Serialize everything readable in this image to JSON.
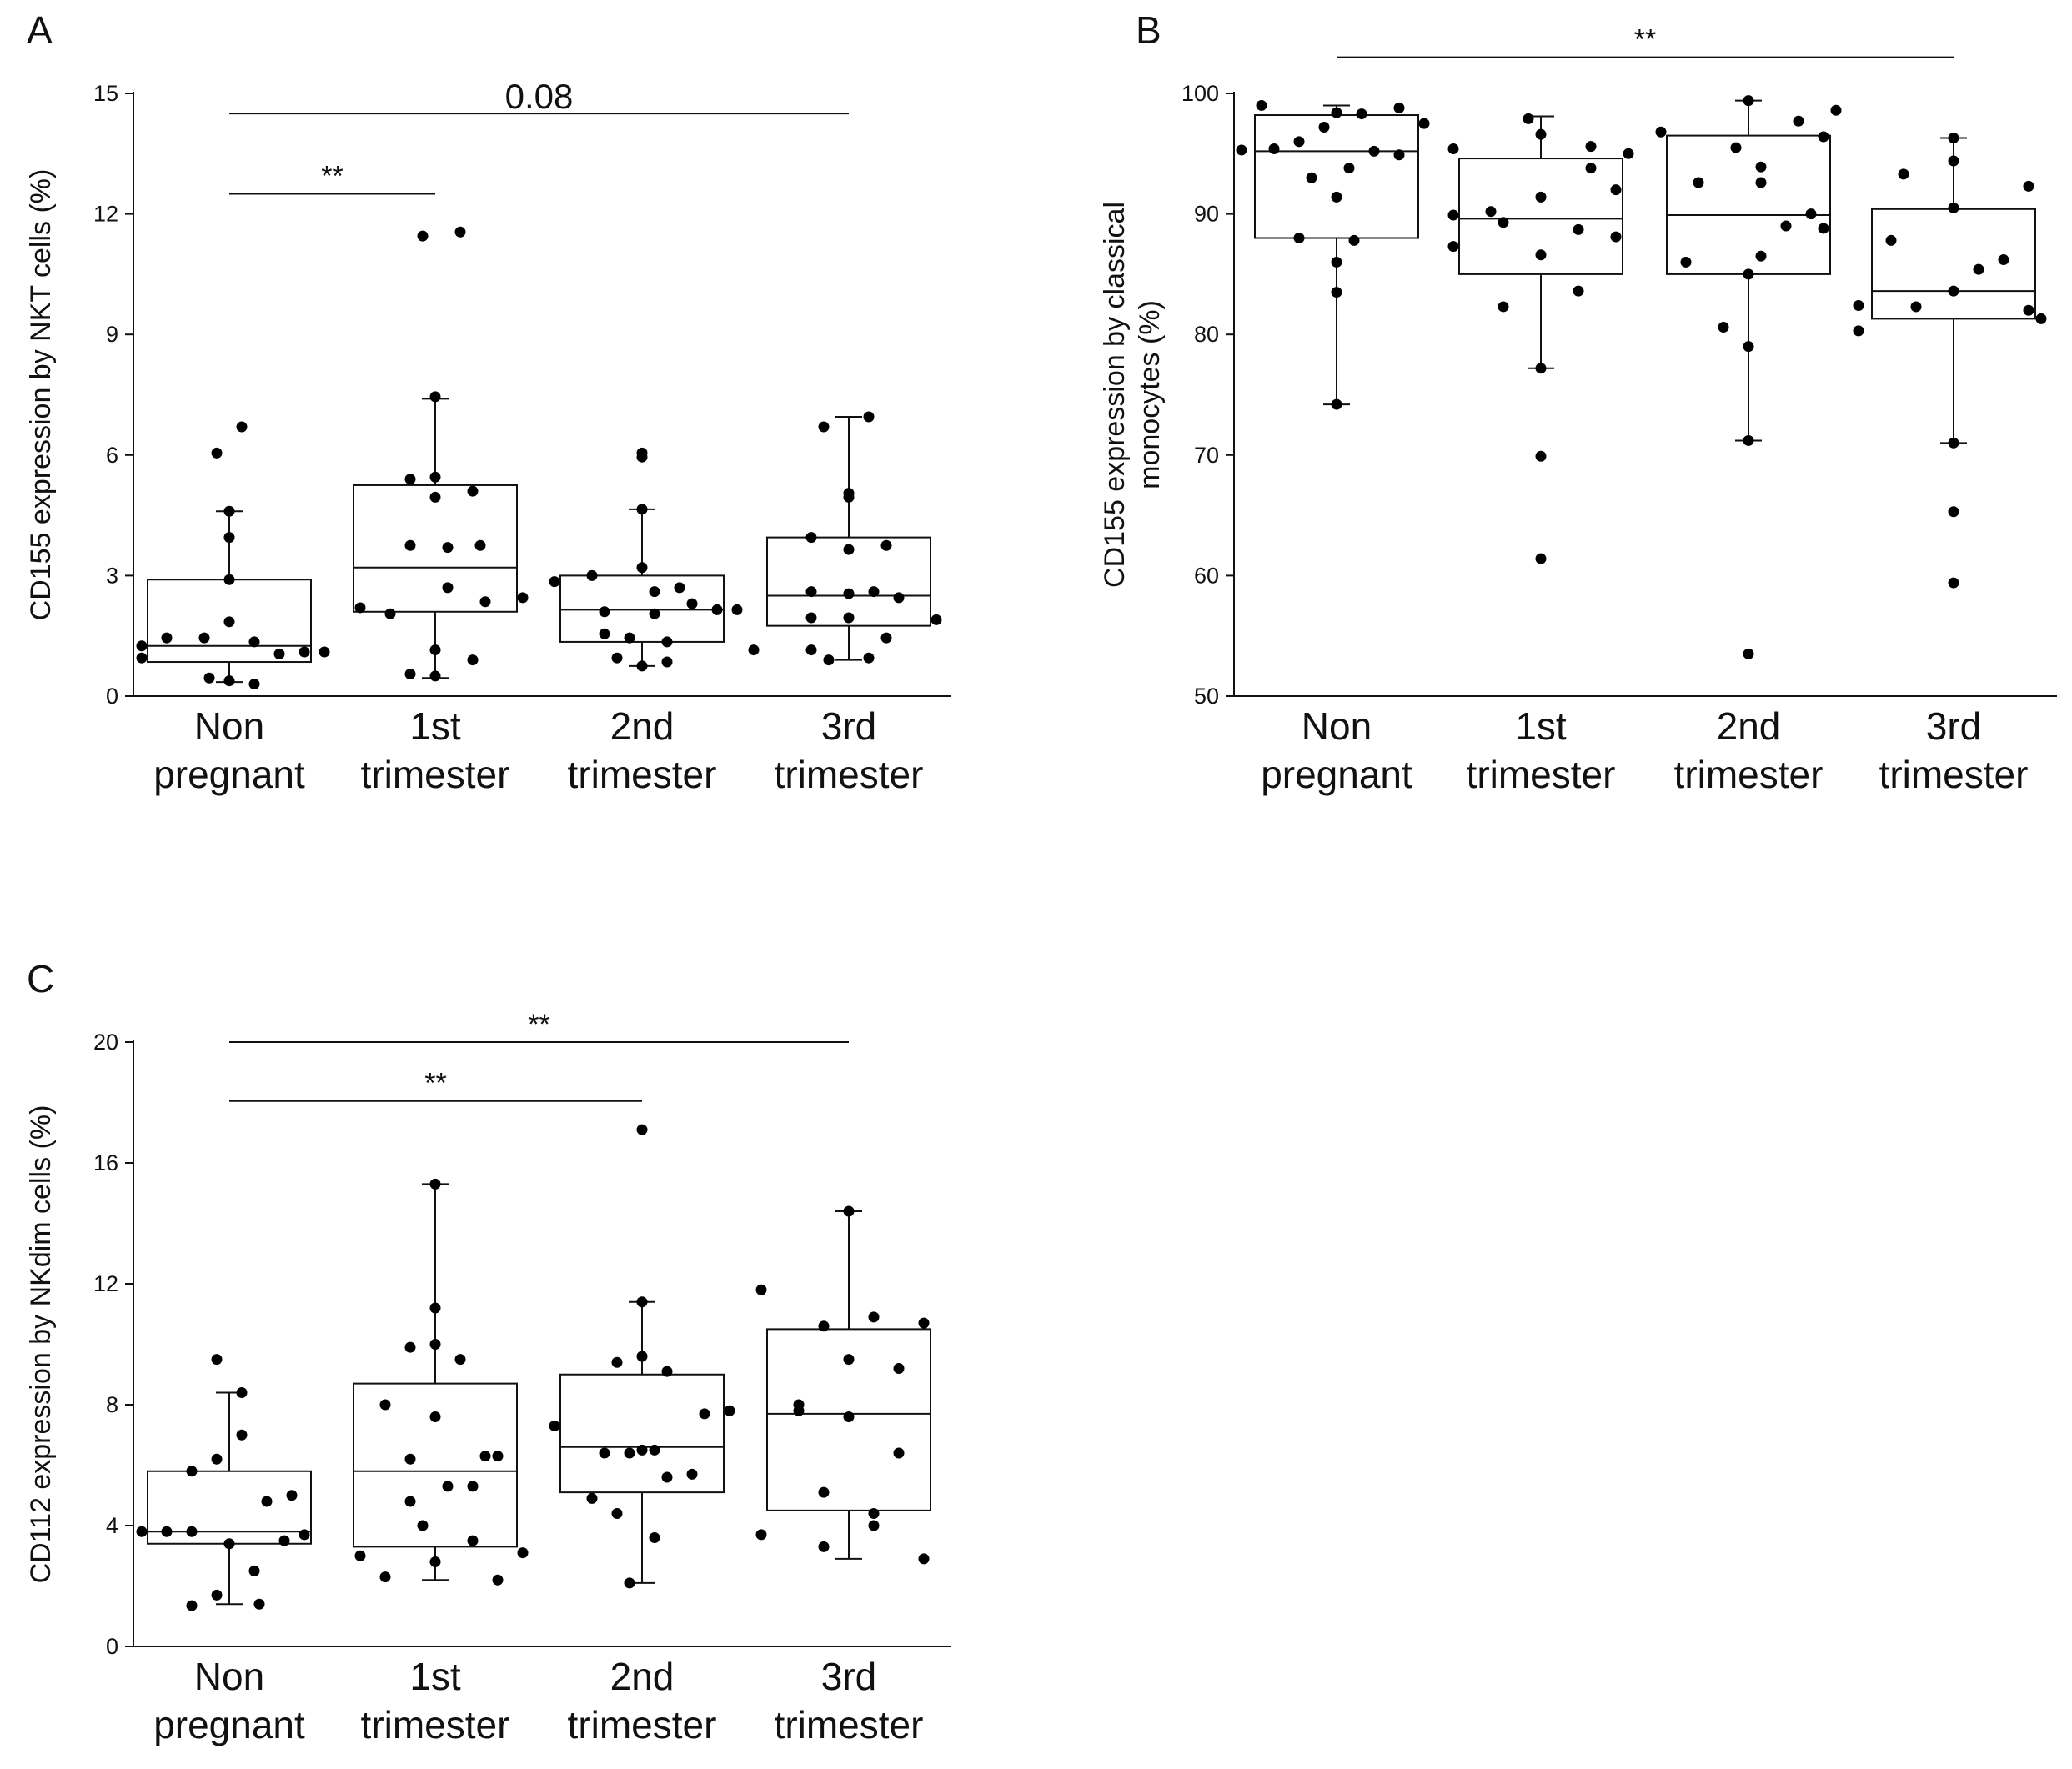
{
  "chart_data": [
    {
      "id": "A",
      "panel_letter": "A",
      "type": "box",
      "ylabel": "CD155 expression by NKT cells (%)",
      "ylim": [
        0,
        15
      ],
      "yticks": [
        0,
        3,
        6,
        9,
        12,
        15
      ],
      "categories": [
        {
          "line1": "Non",
          "line2": "pregnant"
        },
        {
          "line1": "1st",
          "line2": "trimester"
        },
        {
          "line1": "2nd",
          "line2": "trimester"
        },
        {
          "line1": "3rd",
          "line2": "trimester"
        }
      ],
      "boxes": [
        {
          "q1": 0.85,
          "median": 1.25,
          "q3": 2.9,
          "whisker_low": 0.35,
          "whisker_high": 4.6
        },
        {
          "q1": 2.1,
          "median": 3.2,
          "q3": 5.25,
          "whisker_low": 0.45,
          "whisker_high": 7.4
        },
        {
          "q1": 1.35,
          "median": 2.15,
          "q3": 3.0,
          "whisker_low": 0.75,
          "whisker_high": 4.65
        },
        {
          "q1": 1.75,
          "median": 2.5,
          "q3": 3.95,
          "whisker_low": 0.9,
          "whisker_high": 6.95
        }
      ],
      "points": [
        [
          [
            -0.35,
            1.25
          ],
          [
            -0.25,
            1.45
          ],
          [
            -0.1,
            1.45
          ],
          [
            0.1,
            1.35
          ],
          [
            -0.35,
            0.95
          ],
          [
            0.2,
            1.05
          ],
          [
            0.3,
            1.1
          ],
          [
            0.38,
            1.1
          ],
          [
            0.0,
            1.85
          ],
          [
            0.0,
            2.9
          ],
          [
            0.0,
            3.95
          ],
          [
            0.0,
            4.6
          ],
          [
            -0.05,
            6.05
          ],
          [
            0.05,
            6.7
          ],
          [
            -0.08,
            0.45
          ],
          [
            0.1,
            0.3
          ],
          [
            0.0,
            0.38
          ]
        ],
        [
          [
            -0.3,
            2.2
          ],
          [
            -0.18,
            2.05
          ],
          [
            0.05,
            2.7
          ],
          [
            0.2,
            2.35
          ],
          [
            0.35,
            2.45
          ],
          [
            -0.1,
            3.75
          ],
          [
            0.05,
            3.7
          ],
          [
            0.18,
            3.75
          ],
          [
            0.0,
            4.95
          ],
          [
            -0.1,
            5.4
          ],
          [
            0.0,
            5.45
          ],
          [
            0.15,
            5.1
          ],
          [
            0.0,
            7.45
          ],
          [
            0.1,
            11.55
          ],
          [
            -0.05,
            11.45
          ],
          [
            0.0,
            1.15
          ],
          [
            -0.1,
            0.55
          ],
          [
            0.15,
            0.9
          ],
          [
            0.0,
            0.5
          ]
        ],
        [
          [
            -0.35,
            2.85
          ],
          [
            -0.2,
            3.0
          ],
          [
            0.0,
            3.2
          ],
          [
            -0.15,
            2.1
          ],
          [
            0.05,
            2.05
          ],
          [
            0.2,
            2.3
          ],
          [
            0.3,
            2.15
          ],
          [
            0.38,
            2.15
          ],
          [
            0.05,
            2.6
          ],
          [
            0.15,
            2.7
          ],
          [
            -0.15,
            1.55
          ],
          [
            -0.05,
            1.45
          ],
          [
            0.1,
            1.35
          ],
          [
            0.0,
            4.65
          ],
          [
            0.0,
            5.95
          ],
          [
            0.0,
            6.05
          ],
          [
            0.0,
            0.75
          ],
          [
            0.1,
            0.85
          ],
          [
            -0.1,
            0.95
          ]
        ],
        [
          [
            -0.38,
            1.15
          ],
          [
            -0.15,
            1.15
          ],
          [
            0.15,
            1.45
          ],
          [
            0.35,
            1.9
          ],
          [
            -0.15,
            1.95
          ],
          [
            0.0,
            1.95
          ],
          [
            0.2,
            2.45
          ],
          [
            -0.15,
            2.6
          ],
          [
            0.0,
            2.55
          ],
          [
            0.1,
            2.6
          ],
          [
            -0.15,
            3.95
          ],
          [
            0.0,
            3.65
          ],
          [
            0.15,
            3.75
          ],
          [
            0.0,
            4.95
          ],
          [
            0.0,
            5.05
          ],
          [
            -0.1,
            6.7
          ],
          [
            0.08,
            6.95
          ],
          [
            -0.08,
            0.9
          ],
          [
            0.08,
            0.95
          ]
        ]
      ],
      "significance": [
        {
          "from": 0,
          "to": 1,
          "label": "**",
          "level": 12.5
        },
        {
          "from": 0,
          "to": 3,
          "label": "0.08",
          "level": 14.5
        }
      ]
    },
    {
      "id": "B",
      "panel_letter": "B",
      "type": "box",
      "ylabel": "CD155 expression by classical",
      "ylabel2": "monocytes (%)",
      "ylim": [
        50,
        100
      ],
      "yticks": [
        50,
        60,
        70,
        80,
        90,
        100
      ],
      "categories": [
        {
          "line1": "Non",
          "line2": "pregnant"
        },
        {
          "line1": "1st",
          "line2": "trimester"
        },
        {
          "line1": "2nd",
          "line2": "trimester"
        },
        {
          "line1": "3rd",
          "line2": "trimester"
        }
      ],
      "boxes": [
        {
          "q1": 88.0,
          "median": 95.2,
          "q3": 98.2,
          "whisker_low": 74.2,
          "whisker_high": 99.0
        },
        {
          "q1": 85.0,
          "median": 89.6,
          "q3": 94.6,
          "whisker_low": 77.2,
          "whisker_high": 98.1
        },
        {
          "q1": 85.0,
          "median": 89.9,
          "q3": 96.5,
          "whisker_low": 71.2,
          "whisker_high": 99.4
        },
        {
          "q1": 81.3,
          "median": 83.6,
          "q3": 90.4,
          "whisker_low": 71.0,
          "whisker_high": 96.3
        }
      ],
      "points": [
        [
          [
            -0.3,
            99.0
          ],
          [
            -0.15,
            96.0
          ],
          [
            -0.05,
            97.2
          ],
          [
            0.1,
            98.3
          ],
          [
            0.25,
            98.8
          ],
          [
            0.0,
            98.4
          ],
          [
            -0.38,
            95.3
          ],
          [
            -0.25,
            95.4
          ],
          [
            0.15,
            95.2
          ],
          [
            0.25,
            94.9
          ],
          [
            0.35,
            97.5
          ],
          [
            -0.1,
            93.0
          ],
          [
            0.0,
            91.4
          ],
          [
            0.05,
            93.8
          ],
          [
            -0.15,
            88.0
          ],
          [
            0.07,
            87.8
          ],
          [
            0.0,
            86.0
          ],
          [
            0.0,
            83.5
          ],
          [
            0.0,
            74.2
          ]
        ],
        [
          [
            -0.35,
            95.4
          ],
          [
            -0.05,
            97.9
          ],
          [
            0.0,
            96.6
          ],
          [
            0.2,
            95.6
          ],
          [
            0.35,
            95.0
          ],
          [
            0.3,
            92.0
          ],
          [
            0.2,
            93.8
          ],
          [
            -0.35,
            89.9
          ],
          [
            -0.2,
            90.2
          ],
          [
            0.0,
            91.4
          ],
          [
            0.15,
            88.7
          ],
          [
            0.3,
            88.1
          ],
          [
            -0.35,
            87.3
          ],
          [
            -0.15,
            89.3
          ],
          [
            -0.15,
            82.3
          ],
          [
            0.0,
            86.6
          ],
          [
            0.15,
            83.6
          ],
          [
            0.0,
            77.2
          ],
          [
            0.0,
            69.9
          ],
          [
            0.0,
            61.4
          ]
        ],
        [
          [
            -0.35,
            96.8
          ],
          [
            -0.05,
            95.5
          ],
          [
            0.0,
            99.4
          ],
          [
            0.2,
            97.7
          ],
          [
            0.3,
            96.4
          ],
          [
            0.35,
            98.6
          ],
          [
            -0.2,
            92.6
          ],
          [
            0.05,
            93.9
          ],
          [
            0.05,
            92.6
          ],
          [
            -0.25,
            86.0
          ],
          [
            0.05,
            86.5
          ],
          [
            0.15,
            89.0
          ],
          [
            0.25,
            90.0
          ],
          [
            0.3,
            88.8
          ],
          [
            0.0,
            85.0
          ],
          [
            -0.1,
            80.6
          ],
          [
            0.0,
            79.0
          ],
          [
            0.0,
            71.2
          ],
          [
            0.0,
            53.5
          ]
        ],
        [
          [
            -0.38,
            82.4
          ],
          [
            -0.38,
            80.3
          ],
          [
            -0.15,
            82.3
          ],
          [
            0.0,
            83.6
          ],
          [
            0.1,
            85.4
          ],
          [
            0.2,
            86.2
          ],
          [
            0.3,
            82.0
          ],
          [
            0.35,
            81.3
          ],
          [
            -0.2,
            93.3
          ],
          [
            0.0,
            94.4
          ],
          [
            0.0,
            90.5
          ],
          [
            0.3,
            92.3
          ],
          [
            -0.25,
            87.8
          ],
          [
            0.0,
            96.3
          ],
          [
            0.0,
            71.0
          ],
          [
            0.0,
            65.3
          ],
          [
            0.0,
            59.4
          ]
        ]
      ],
      "significance": [
        {
          "from": 0,
          "to": 3,
          "label": "**",
          "level": 103.0
        }
      ]
    },
    {
      "id": "C",
      "panel_letter": "C",
      "type": "box",
      "ylabel": "CD112 expression by NKdim cells (%)",
      "ylim": [
        0,
        20
      ],
      "yticks": [
        0,
        4,
        8,
        12,
        16,
        20
      ],
      "categories": [
        {
          "line1": "Non",
          "line2": "pregnant"
        },
        {
          "line1": "1st",
          "line2": "trimester"
        },
        {
          "line1": "2nd",
          "line2": "trimester"
        },
        {
          "line1": "3rd",
          "line2": "trimester"
        }
      ],
      "boxes": [
        {
          "q1": 3.4,
          "median": 3.8,
          "q3": 5.8,
          "whisker_low": 1.4,
          "whisker_high": 8.4
        },
        {
          "q1": 3.3,
          "median": 5.8,
          "q3": 8.7,
          "whisker_low": 2.2,
          "whisker_high": 15.3
        },
        {
          "q1": 5.1,
          "median": 6.6,
          "q3": 9.0,
          "whisker_low": 2.1,
          "whisker_high": 11.4
        },
        {
          "q1": 4.5,
          "median": 7.7,
          "q3": 10.5,
          "whisker_low": 2.9,
          "whisker_high": 14.4
        }
      ],
      "points": [
        [
          [
            -0.35,
            3.8
          ],
          [
            -0.25,
            3.8
          ],
          [
            -0.15,
            3.8
          ],
          [
            0.3,
            3.7
          ],
          [
            0.22,
            3.5
          ],
          [
            -0.15,
            5.8
          ],
          [
            -0.05,
            6.2
          ],
          [
            0.15,
            4.8
          ],
          [
            0.25,
            5.0
          ],
          [
            0.05,
            7.0
          ],
          [
            -0.05,
            9.5
          ],
          [
            0.05,
            8.4
          ],
          [
            0.0,
            3.4
          ],
          [
            0.1,
            2.5
          ],
          [
            -0.05,
            1.7
          ],
          [
            -0.15,
            1.35
          ],
          [
            0.12,
            1.4
          ]
        ],
        [
          [
            -0.3,
            3.0
          ],
          [
            -0.2,
            2.3
          ],
          [
            0.0,
            2.8
          ],
          [
            0.15,
            3.5
          ],
          [
            0.35,
            3.1
          ],
          [
            0.25,
            2.2
          ],
          [
            -0.05,
            4.0
          ],
          [
            -0.1,
            4.8
          ],
          [
            0.05,
            5.3
          ],
          [
            0.15,
            5.3
          ],
          [
            -0.1,
            6.2
          ],
          [
            0.2,
            6.3
          ],
          [
            0.25,
            6.3
          ],
          [
            -0.2,
            8.0
          ],
          [
            0.0,
            7.6
          ],
          [
            -0.1,
            9.9
          ],
          [
            0.0,
            10.0
          ],
          [
            0.1,
            9.5
          ],
          [
            0.0,
            11.2
          ],
          [
            0.0,
            15.3
          ]
        ],
        [
          [
            -0.35,
            7.3
          ],
          [
            -0.2,
            4.9
          ],
          [
            -0.15,
            6.4
          ],
          [
            -0.05,
            6.4
          ],
          [
            0.05,
            6.5
          ],
          [
            0.0,
            6.5
          ],
          [
            0.1,
            5.6
          ],
          [
            0.2,
            5.7
          ],
          [
            0.25,
            7.7
          ],
          [
            0.35,
            7.8
          ],
          [
            -0.1,
            4.4
          ],
          [
            0.05,
            3.6
          ],
          [
            -0.1,
            9.4
          ],
          [
            0.0,
            9.6
          ],
          [
            0.1,
            9.1
          ],
          [
            0.0,
            11.4
          ],
          [
            0.0,
            17.1
          ],
          [
            -0.05,
            2.1
          ]
        ],
        [
          [
            -0.35,
            11.8
          ],
          [
            -0.2,
            8.0
          ],
          [
            -0.2,
            7.8
          ],
          [
            0.0,
            7.6
          ],
          [
            0.0,
            9.5
          ],
          [
            -0.1,
            10.6
          ],
          [
            0.1,
            10.9
          ],
          [
            0.2,
            9.2
          ],
          [
            0.3,
            10.7
          ],
          [
            0.2,
            6.4
          ],
          [
            -0.1,
            5.1
          ],
          [
            0.1,
            4.4
          ],
          [
            0.1,
            4.0
          ],
          [
            -0.35,
            3.7
          ],
          [
            -0.1,
            3.3
          ],
          [
            0.3,
            2.9
          ],
          [
            0.0,
            14.4
          ]
        ]
      ],
      "significance": [
        {
          "from": 0,
          "to": 2,
          "label": "**",
          "level": 18.05
        },
        {
          "from": 0,
          "to": 3,
          "label": "**",
          "level": 20.0
        }
      ]
    }
  ]
}
